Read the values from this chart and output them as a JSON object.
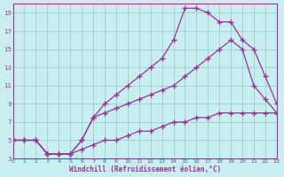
{
  "xlabel": "Windchill (Refroidissement éolien,°C)",
  "bg_color": "#c8eef0",
  "grid_color": "#a0cccc",
  "line_color": "#993399",
  "xlim": [
    0,
    23
  ],
  "ylim": [
    3,
    20
  ],
  "xticks": [
    0,
    1,
    2,
    3,
    4,
    5,
    6,
    7,
    8,
    9,
    10,
    11,
    12,
    13,
    14,
    15,
    16,
    17,
    18,
    19,
    20,
    21,
    22,
    23
  ],
  "yticks": [
    3,
    5,
    7,
    9,
    11,
    13,
    15,
    17,
    19
  ],
  "curve1_x": [
    0,
    1,
    2,
    3,
    4,
    5,
    6,
    7,
    8,
    9,
    10,
    11,
    12,
    13,
    14,
    15,
    16,
    17,
    18,
    19,
    20,
    21,
    22,
    23
  ],
  "curve1_y": [
    5,
    5,
    5,
    3.5,
    3.5,
    3.5,
    5,
    7.5,
    9,
    10,
    11,
    12,
    13,
    14,
    16,
    19.5,
    19.5,
    19,
    18,
    18,
    16,
    15,
    12,
    9
  ],
  "curve2_x": [
    0,
    1,
    2,
    3,
    4,
    5,
    6,
    7,
    8,
    9,
    10,
    11,
    12,
    13,
    14,
    15,
    16,
    17,
    18,
    19,
    20,
    21,
    22,
    23
  ],
  "curve2_y": [
    5,
    5,
    5,
    3.5,
    3.5,
    3.5,
    5,
    7.5,
    8,
    8.5,
    9,
    9.5,
    10,
    10.5,
    11,
    12,
    13,
    14,
    15,
    16,
    15,
    11,
    9.5,
    8
  ],
  "curve3_x": [
    0,
    1,
    2,
    3,
    4,
    5,
    6,
    7,
    8,
    9,
    10,
    11,
    12,
    13,
    14,
    15,
    16,
    17,
    18,
    19,
    20,
    21,
    22,
    23
  ],
  "curve3_y": [
    5,
    5,
    5,
    3.5,
    3.5,
    3.5,
    4,
    4.5,
    5,
    5,
    5.5,
    6,
    6,
    6.5,
    7,
    7,
    7.5,
    7.5,
    8,
    8,
    8,
    8,
    8,
    8
  ]
}
